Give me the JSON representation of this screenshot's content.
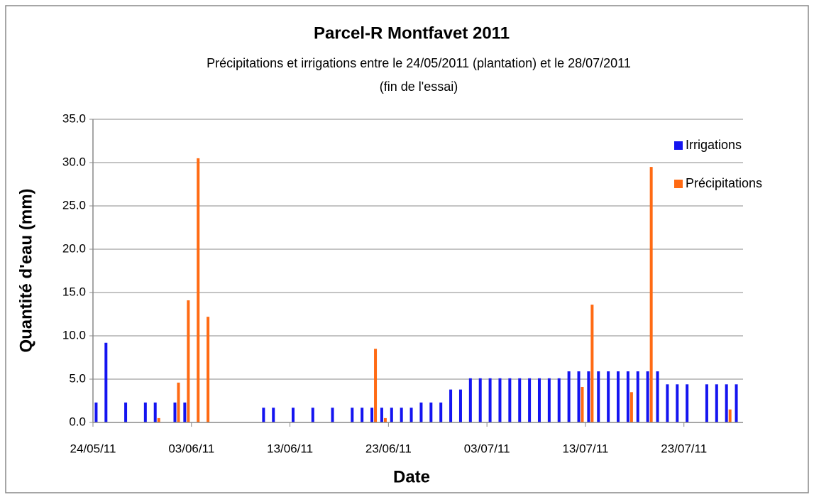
{
  "chart_data": {
    "type": "bar",
    "title": "Parcel-R Montfavet 2011",
    "subtitle": [
      "Précipitations et irrigations entre le 24/05/2011 (plantation) et le 28/07/2011",
      "(fin de l'essai)"
    ],
    "xlabel": "Date",
    "ylabel": "Quantité d'eau (mm)",
    "categories": [
      "24/05/11",
      null,
      null,
      null,
      null,
      null,
      null,
      null,
      null,
      null,
      "03/06/11",
      null,
      null,
      null,
      null,
      null,
      null,
      null,
      null,
      null,
      "13/06/11",
      null,
      null,
      null,
      null,
      null,
      null,
      null,
      null,
      null,
      "23/06/11",
      null,
      null,
      null,
      null,
      null,
      null,
      null,
      null,
      null,
      "03/07/11",
      null,
      null,
      null,
      null,
      null,
      null,
      null,
      null,
      null,
      "13/07/11",
      null,
      null,
      null,
      null,
      null,
      null,
      null,
      null,
      null,
      "23/07/11",
      null,
      null,
      null,
      null,
      null
    ],
    "series": [
      {
        "name": "Irrigations",
        "color": "#1414f0",
        "values": [
          2.3,
          9.2,
          0,
          2.3,
          0,
          2.3,
          2.3,
          0,
          2.3,
          2.3,
          0,
          0,
          0,
          0,
          0,
          0,
          0,
          1.7,
          1.7,
          0,
          1.7,
          0,
          1.7,
          0,
          1.7,
          0,
          1.7,
          1.7,
          1.7,
          1.7,
          1.7,
          1.7,
          1.7,
          2.3,
          2.3,
          2.3,
          3.8,
          3.8,
          5.1,
          5.1,
          5.1,
          5.1,
          5.1,
          5.1,
          5.1,
          5.1,
          5.1,
          5.1,
          5.9,
          5.9,
          5.9,
          5.9,
          5.9,
          5.9,
          5.9,
          5.9,
          5.9,
          5.9,
          4.4,
          4.4,
          4.4,
          0,
          4.4,
          4.4,
          4.4,
          4.4
        ]
      },
      {
        "name": "Précipitations",
        "color": "#ff6a13",
        "values": [
          0,
          0,
          0,
          0,
          0,
          0,
          0.5,
          0,
          4.6,
          14.1,
          30.5,
          12.2,
          0,
          0,
          0,
          0,
          0,
          0,
          0,
          0,
          0,
          0,
          0,
          0,
          0,
          0,
          0,
          0,
          8.5,
          0.5,
          0,
          0,
          0,
          0,
          0,
          0,
          0,
          0,
          0,
          0,
          0,
          0,
          0,
          0,
          0,
          0,
          0,
          0,
          0,
          4.1,
          13.6,
          0,
          0,
          0,
          3.5,
          0,
          29.5,
          0,
          0,
          0,
          0,
          0,
          0,
          0,
          1.5,
          0
        ]
      }
    ],
    "ylim": [
      0,
      35
    ],
    "yticks": [
      {
        "value": 0,
        "label": "0.0"
      },
      {
        "value": 5,
        "label": "5.0"
      },
      {
        "value": 10,
        "label": "10.0"
      },
      {
        "value": 15,
        "label": "15.0"
      },
      {
        "value": 20,
        "label": "20.0"
      },
      {
        "value": 25,
        "label": "25.0"
      },
      {
        "value": 30,
        "label": "30.0"
      },
      {
        "value": 35,
        "label": "35.0"
      }
    ],
    "grid": true,
    "legend": "upper right"
  }
}
